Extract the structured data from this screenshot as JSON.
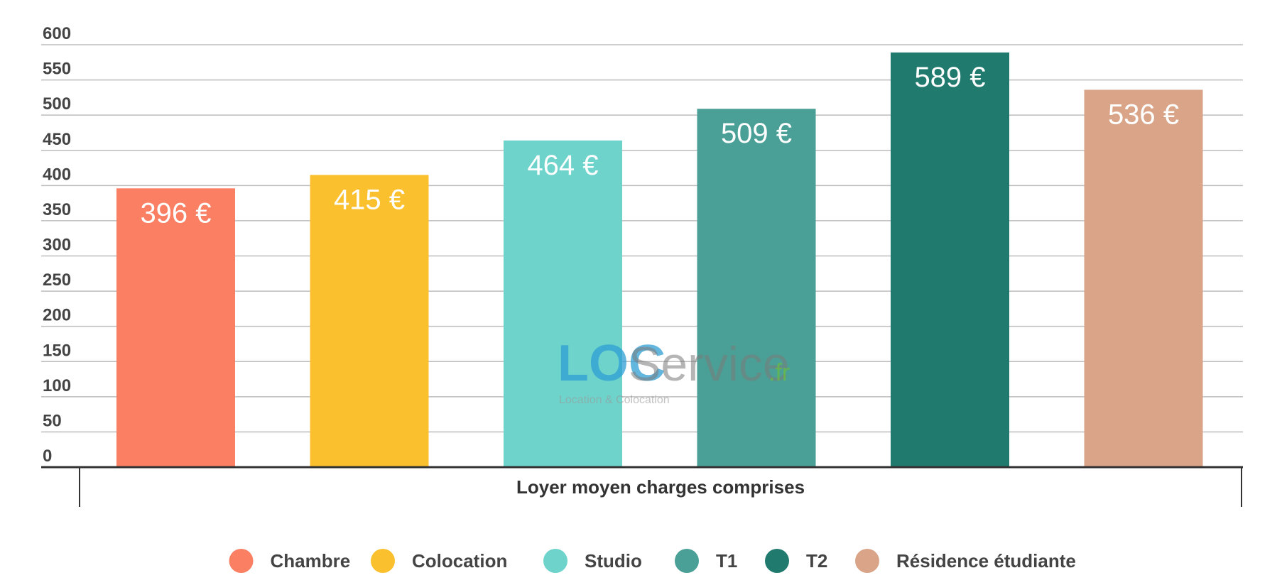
{
  "chart_data": {
    "type": "bar",
    "title": "",
    "xlabel": "Loyer moyen charges comprises",
    "ylabel": "",
    "ylim": [
      0,
      600
    ],
    "yticks": [
      0,
      50,
      100,
      150,
      200,
      250,
      300,
      350,
      400,
      450,
      500,
      550,
      600
    ],
    "grid": true,
    "legend_position": "bottom",
    "categories": [
      "Chambre",
      "Colocation",
      "Studio",
      "T1",
      "T2",
      "Résidence étudiante"
    ],
    "values": [
      396,
      415,
      464,
      509,
      589,
      536
    ],
    "data_labels": [
      "396 €",
      "415 €",
      "464 €",
      "509 €",
      "589 €",
      "536 €"
    ],
    "colors": [
      "#fa7f63",
      "#fbc02d",
      "#6dd3cb",
      "#4aa096",
      "#207a6e",
      "#d9a487"
    ]
  },
  "watermark": {
    "brand_loc": "LOC",
    "brand_service": "Service",
    "brand_tld": ".fr",
    "tagline": "Location & Colocation"
  }
}
